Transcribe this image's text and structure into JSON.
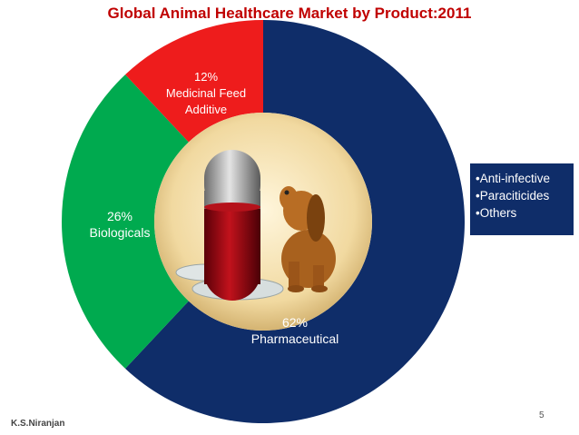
{
  "chart_data": {
    "type": "pie",
    "title": "Global Animal Healthcare Market by Product:2011",
    "slices": [
      {
        "label": "Pharmaceutical",
        "value": 62,
        "value_label": "62%",
        "color": "#0f2d69"
      },
      {
        "label": "Biologicals",
        "value": 26,
        "value_label": "26%",
        "color": "#00aa4f"
      },
      {
        "label": "Medicinal Feed Additive",
        "value": 12,
        "value_label": "12%",
        "color": "#ee1c1c"
      }
    ]
  },
  "callout": {
    "items": [
      "•Anti-infective",
      "•Paraciticides",
      "•Others"
    ],
    "color": "#0f2d69"
  },
  "footer": {
    "author": "K.S.Niranjan",
    "page_number": "5"
  }
}
